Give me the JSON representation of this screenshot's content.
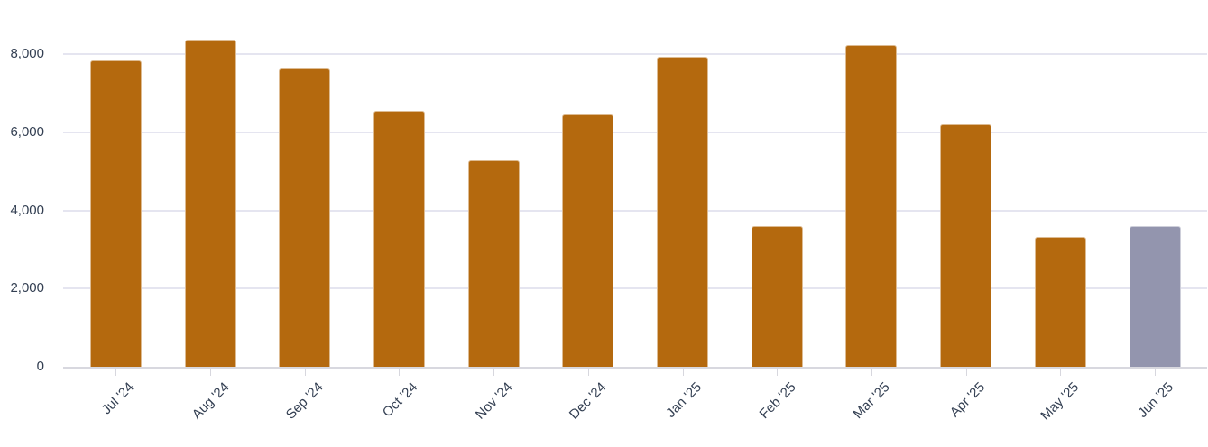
{
  "chart_data": {
    "type": "bar",
    "title": "",
    "subtitle": "",
    "xlabel": "",
    "ylabel": "",
    "legend": "none",
    "grid": "horizontal",
    "x_label_rotation": -45,
    "categories": [
      "Jul '24",
      "Aug '24",
      "Sep '24",
      "Oct '24",
      "Nov '24",
      "Dec '24",
      "Jan '25",
      "Feb '25",
      "Mar '25",
      "Apr '25",
      "May '25",
      "Jun '25"
    ],
    "values": [
      7840,
      8380,
      7640,
      6550,
      5280,
      6470,
      7950,
      3590,
      8240,
      6200,
      3330,
      3590
    ],
    "highlight_index": 11,
    "yticks": [
      0,
      2000,
      4000,
      6000,
      8000
    ],
    "ytick_labels": [
      "0",
      "2,000",
      "4,000",
      "6,000",
      "8,000"
    ],
    "ylim": [
      0,
      9150
    ],
    "colors": {
      "bar_default": "#B4690E",
      "bar_highlight": "#9395AE",
      "gridline": "#E5E5F0",
      "axis_line": "#D8D8DF",
      "tick_mark": "#D7D7DE",
      "label_text": "#333F52",
      "background": "#FFFFFF"
    }
  }
}
